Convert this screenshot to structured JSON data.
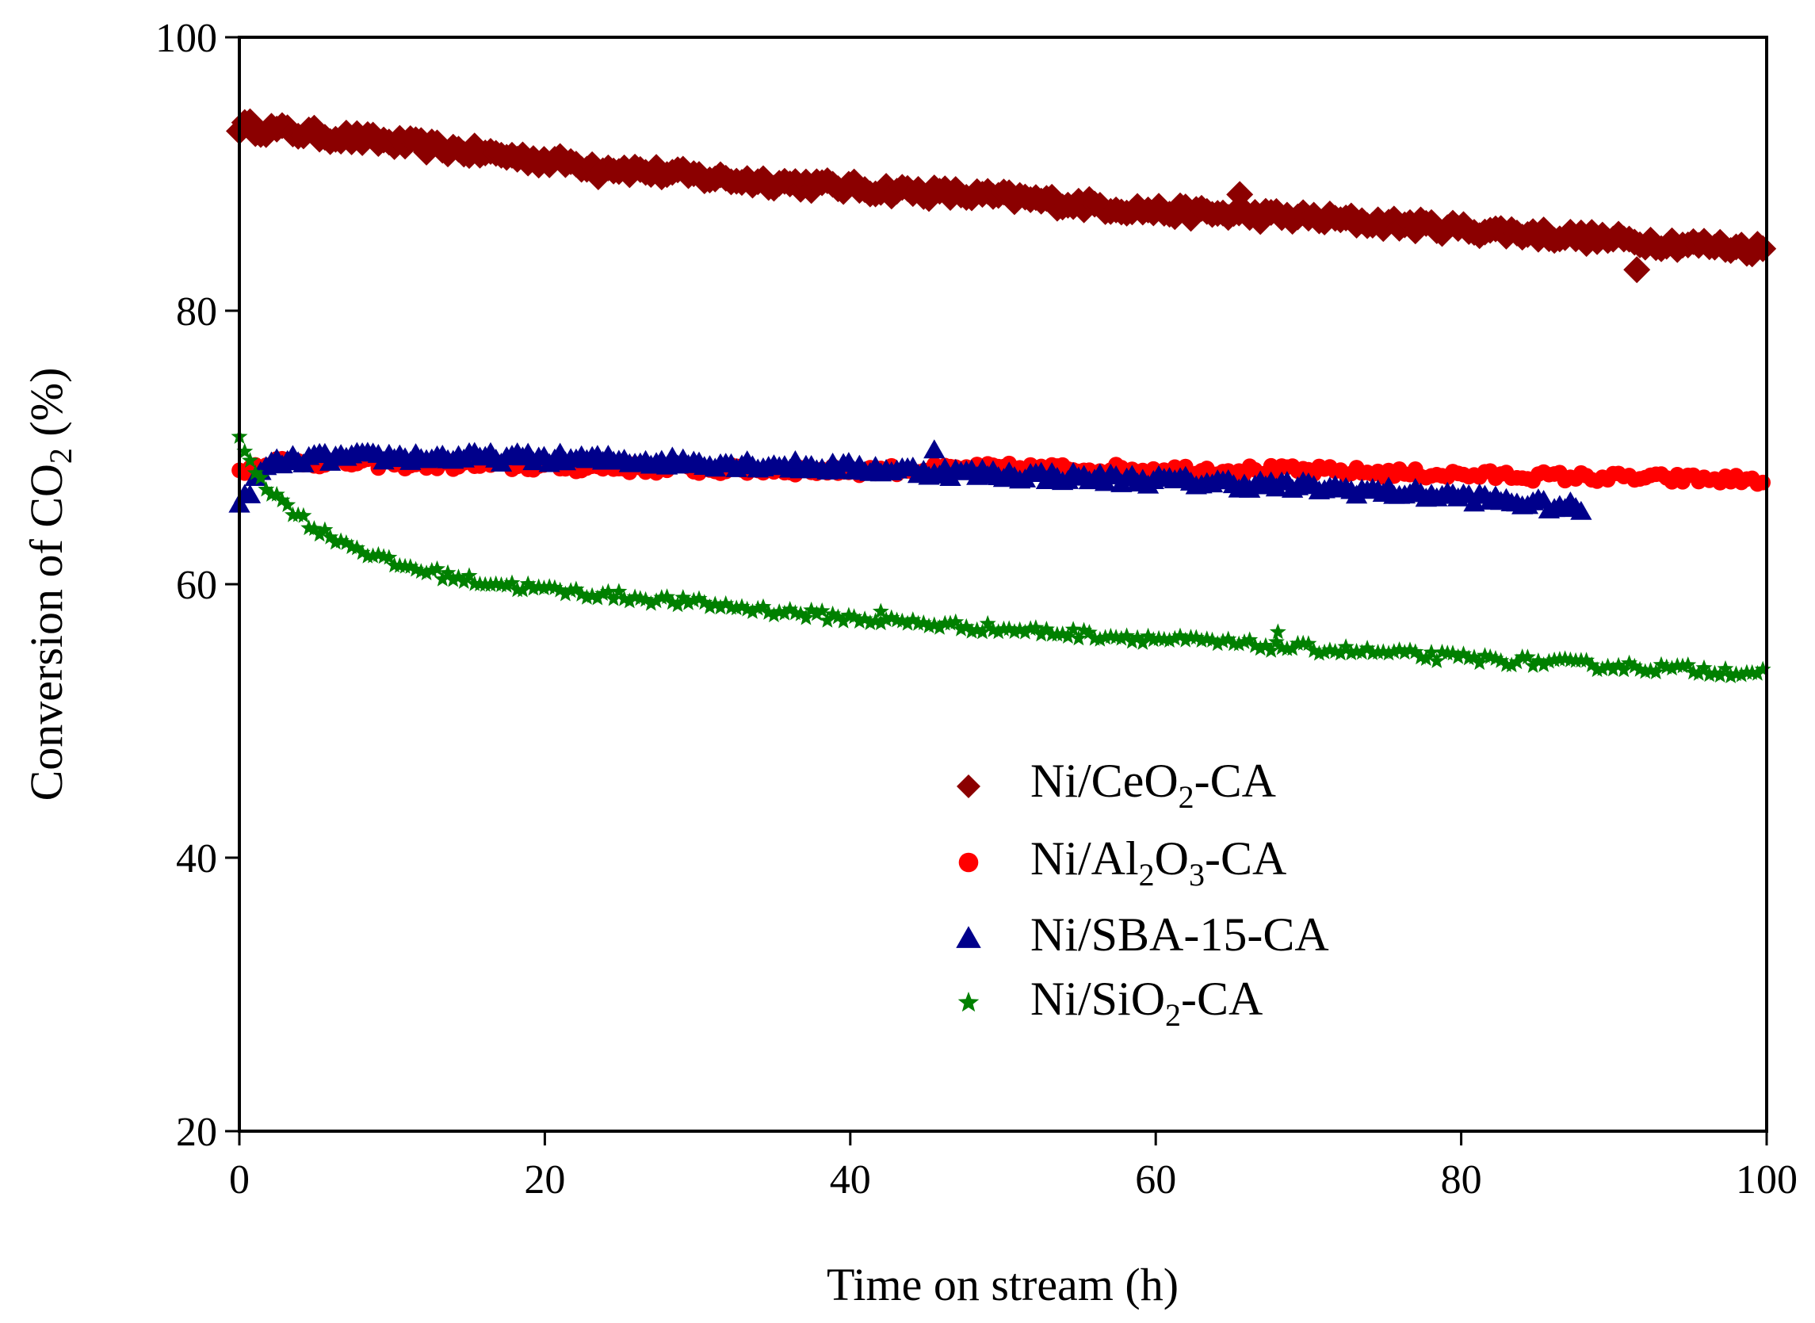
{
  "chart_data": {
    "type": "scatter",
    "title": "",
    "xlabel": "Time on stream (h)",
    "ylabel": {
      "prefix": "Conversion of CO",
      "sub": "2",
      "suffix": " (%)"
    },
    "xlim": [
      0,
      100
    ],
    "ylim": [
      20,
      100
    ],
    "xticks": [
      "0",
      "20",
      "40",
      "60",
      "80",
      "100"
    ],
    "yticks": [
      "20",
      "40",
      "60",
      "80",
      "100"
    ],
    "grid": false,
    "legend_position": "center-right",
    "series": [
      {
        "name": "Ni/CeO2-CA",
        "legend": {
          "a": "Ni/CeO",
          "sub": "2",
          "b": "-CA"
        },
        "marker": "diamond",
        "color": "#8b0000",
        "x_end": 100,
        "points": [
          [
            0,
            93.5
          ],
          [
            10,
            92.3
          ],
          [
            20,
            91.0
          ],
          [
            30,
            89.8
          ],
          [
            40,
            89.0
          ],
          [
            50,
            88.3
          ],
          [
            60,
            87.3
          ],
          [
            70,
            86.8
          ],
          [
            80,
            86.0
          ],
          [
            90,
            85.2
          ],
          [
            100,
            84.5
          ]
        ],
        "outliers": [
          [
            23.5,
            89.8
          ],
          [
            65.5,
            88.5
          ],
          [
            91.5,
            83.0
          ]
        ]
      },
      {
        "name": "Ni/Al2O3-CA",
        "legend": {
          "a": "Ni/Al",
          "sub": "2",
          "b": "O",
          "sub2": "3",
          "b2": "-CA"
        },
        "marker": "circle",
        "color": "#ff0000",
        "x_end": 100,
        "points": [
          [
            0,
            68.3
          ],
          [
            2,
            69.0
          ],
          [
            10,
            68.8
          ],
          [
            20,
            68.6
          ],
          [
            30,
            68.4
          ],
          [
            40,
            68.3
          ],
          [
            50,
            68.5
          ],
          [
            60,
            68.4
          ],
          [
            70,
            68.3
          ],
          [
            80,
            68.0
          ],
          [
            90,
            67.8
          ],
          [
            100,
            67.6
          ]
        ],
        "outliers": []
      },
      {
        "name": "Ni/SBA-15-CA",
        "legend": {
          "a": "Ni/SBA-15-CA"
        },
        "marker": "triangle",
        "color": "#00008b",
        "x_end": 88,
        "points": [
          [
            0,
            65.5
          ],
          [
            1,
            67.5
          ],
          [
            2,
            68.8
          ],
          [
            5,
            69.2
          ],
          [
            10,
            69.3
          ],
          [
            20,
            69.2
          ],
          [
            30,
            68.9
          ],
          [
            40,
            68.5
          ],
          [
            50,
            68.0
          ],
          [
            60,
            67.6
          ],
          [
            70,
            67.1
          ],
          [
            80,
            66.4
          ],
          [
            88,
            65.5
          ]
        ],
        "outliers": [
          [
            45.5,
            69.8
          ]
        ]
      },
      {
        "name": "Ni/SiO2-CA",
        "legend": {
          "a": "Ni/SiO",
          "sub": "2",
          "b": "-CA"
        },
        "marker": "star",
        "color": "#008000",
        "x_end": 100,
        "points": [
          [
            0,
            70.5
          ],
          [
            1,
            68.5
          ],
          [
            2,
            66.8
          ],
          [
            5,
            64.0
          ],
          [
            10,
            61.5
          ],
          [
            15,
            60.3
          ],
          [
            20,
            59.6
          ],
          [
            30,
            58.6
          ],
          [
            40,
            57.5
          ],
          [
            50,
            56.7
          ],
          [
            60,
            56.0
          ],
          [
            70,
            55.3
          ],
          [
            80,
            54.6
          ],
          [
            90,
            54.0
          ],
          [
            100,
            53.5
          ]
        ],
        "outliers": [
          [
            42,
            58.0
          ],
          [
            68,
            56.5
          ]
        ]
      }
    ]
  }
}
